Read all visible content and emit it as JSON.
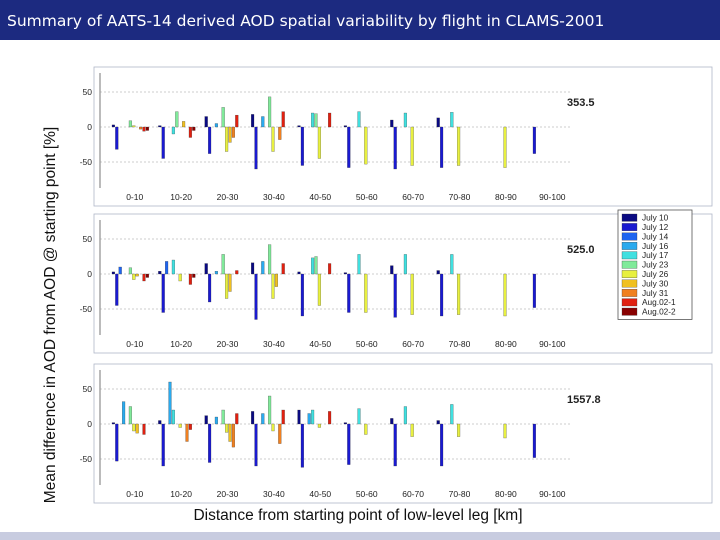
{
  "slide": {
    "title": "Summary of AATS-14 derived AOD spatial variability by flight in CLAMS-2001",
    "colors": {
      "title_bg": "#1c2a80",
      "title_text": "#ffffff"
    }
  },
  "chart_data": {
    "type": "bar",
    "ylabel": "Mean difference in AOD from AOD @ starting point [%]",
    "xlabel": "Distance from starting point of low-level leg [km]",
    "categories": [
      "0-10",
      "10-20",
      "20-30",
      "30-40",
      "40-50",
      "50-60",
      "60-70",
      "70-80",
      "80-90",
      "90-100"
    ],
    "yticks": [
      50,
      0,
      -50
    ],
    "ylim": [
      -90,
      70
    ],
    "legend": {
      "placement": "right",
      "entries": [
        {
          "name": "July 10",
          "color": "#0a0a82"
        },
        {
          "name": "July 12",
          "color": "#1a1ad0"
        },
        {
          "name": "July 14",
          "color": "#1e64f0"
        },
        {
          "name": "July 16",
          "color": "#2aaaee"
        },
        {
          "name": "July 17",
          "color": "#40e0e0"
        },
        {
          "name": "July 23",
          "color": "#80ea9a"
        },
        {
          "name": "July 26",
          "color": "#e8f040"
        },
        {
          "name": "July 30",
          "color": "#f0c020"
        },
        {
          "name": "July 31",
          "color": "#f08020"
        },
        {
          "name": "Aug.02-1",
          "color": "#e02010"
        },
        {
          "name": "Aug.02-2",
          "color": "#880000"
        }
      ]
    },
    "panels": [
      {
        "label": "353.5",
        "bars": [
          [
            [
              0,
              3
            ],
            [
              1,
              -32
            ],
            [
              5,
              9
            ],
            [
              6,
              2
            ],
            [
              8,
              -3
            ],
            [
              9,
              -6
            ],
            [
              10,
              -5
            ]
          ],
          [
            [
              0,
              2
            ],
            [
              1,
              -45
            ],
            [
              4,
              -10
            ],
            [
              5,
              22
            ],
            [
              7,
              8
            ],
            [
              9,
              -15
            ],
            [
              10,
              -5
            ]
          ],
          [
            [
              0,
              15
            ],
            [
              1,
              -38
            ],
            [
              3,
              5
            ],
            [
              5,
              28
            ],
            [
              6,
              -35
            ],
            [
              7,
              -22
            ],
            [
              8,
              -15
            ],
            [
              9,
              17
            ]
          ],
          [
            [
              0,
              18
            ],
            [
              1,
              -60
            ],
            [
              3,
              15
            ],
            [
              5,
              43
            ],
            [
              6,
              -35
            ],
            [
              8,
              -18
            ],
            [
              9,
              22
            ]
          ],
          [
            [
              0,
              2
            ],
            [
              1,
              -55
            ],
            [
              4,
              20
            ],
            [
              5,
              19
            ],
            [
              6,
              -45
            ],
            [
              9,
              20
            ]
          ],
          [
            [
              0,
              2
            ],
            [
              1,
              -58
            ],
            [
              4,
              22
            ],
            [
              6,
              -53
            ]
          ],
          [
            [
              0,
              10
            ],
            [
              1,
              -60
            ],
            [
              4,
              20
            ],
            [
              6,
              -55
            ]
          ],
          [
            [
              0,
              13
            ],
            [
              1,
              -58
            ],
            [
              4,
              21
            ],
            [
              6,
              -55
            ]
          ],
          [
            [
              6,
              -58
            ]
          ],
          [
            [
              1,
              -38
            ]
          ]
        ]
      },
      {
        "label": "525.0",
        "bars": [
          [
            [
              0,
              3
            ],
            [
              1,
              -45
            ],
            [
              2,
              10
            ],
            [
              5,
              9
            ],
            [
              6,
              -8
            ],
            [
              7,
              -3
            ],
            [
              9,
              -10
            ],
            [
              10,
              -5
            ]
          ],
          [
            [
              0,
              4
            ],
            [
              1,
              -55
            ],
            [
              2,
              18
            ],
            [
              4,
              20
            ],
            [
              6,
              -10
            ],
            [
              9,
              -15
            ],
            [
              10,
              -5
            ]
          ],
          [
            [
              0,
              15
            ],
            [
              1,
              -40
            ],
            [
              3,
              4
            ],
            [
              5,
              28
            ],
            [
              6,
              -35
            ],
            [
              7,
              -25
            ],
            [
              9,
              5
            ]
          ],
          [
            [
              0,
              16
            ],
            [
              1,
              -65
            ],
            [
              3,
              18
            ],
            [
              5,
              42
            ],
            [
              6,
              -35
            ],
            [
              7,
              -18
            ],
            [
              9,
              15
            ]
          ],
          [
            [
              0,
              3
            ],
            [
              1,
              -60
            ],
            [
              4,
              23
            ],
            [
              5,
              25
            ],
            [
              6,
              -45
            ],
            [
              9,
              15
            ]
          ],
          [
            [
              0,
              2
            ],
            [
              1,
              -55
            ],
            [
              4,
              28
            ],
            [
              6,
              -55
            ]
          ],
          [
            [
              0,
              12
            ],
            [
              1,
              -62
            ],
            [
              4,
              28
            ],
            [
              6,
              -58
            ]
          ],
          [
            [
              0,
              5
            ],
            [
              1,
              -60
            ],
            [
              4,
              28
            ],
            [
              6,
              -58
            ]
          ],
          [
            [
              6,
              -60
            ]
          ],
          [
            [
              1,
              -48
            ]
          ]
        ]
      },
      {
        "label": "1557.8",
        "bars": [
          [
            [
              0,
              2
            ],
            [
              1,
              -53
            ],
            [
              3,
              32
            ],
            [
              5,
              25
            ],
            [
              6,
              -10
            ],
            [
              7,
              -13
            ],
            [
              9,
              -15
            ]
          ],
          [
            [
              0,
              5
            ],
            [
              1,
              -60
            ],
            [
              3,
              60
            ],
            [
              4,
              20
            ],
            [
              6,
              -5
            ],
            [
              8,
              -25
            ],
            [
              9,
              -8
            ]
          ],
          [
            [
              0,
              12
            ],
            [
              1,
              -55
            ],
            [
              3,
              10
            ],
            [
              5,
              20
            ],
            [
              6,
              -12
            ],
            [
              7,
              -25
            ],
            [
              8,
              -33
            ],
            [
              9,
              15
            ]
          ],
          [
            [
              0,
              18
            ],
            [
              1,
              -60
            ],
            [
              3,
              15
            ],
            [
              5,
              40
            ],
            [
              6,
              -10
            ],
            [
              8,
              -28
            ],
            [
              9,
              20
            ]
          ],
          [
            [
              0,
              20
            ],
            [
              1,
              -62
            ],
            [
              3,
              15
            ],
            [
              4,
              20
            ],
            [
              6,
              -5
            ],
            [
              9,
              18
            ]
          ],
          [
            [
              0,
              2
            ],
            [
              1,
              -58
            ],
            [
              4,
              22
            ],
            [
              6,
              -15
            ]
          ],
          [
            [
              0,
              8
            ],
            [
              1,
              -60
            ],
            [
              4,
              25
            ],
            [
              6,
              -18
            ]
          ],
          [
            [
              0,
              5
            ],
            [
              1,
              -60
            ],
            [
              4,
              28
            ],
            [
              6,
              -18
            ]
          ],
          [
            [
              6,
              -20
            ]
          ],
          [
            [
              1,
              -48
            ]
          ]
        ]
      }
    ]
  }
}
